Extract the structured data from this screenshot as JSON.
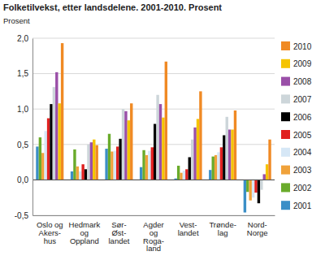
{
  "chart_data": {
    "type": "bar",
    "title": "Folketilvekst, etter landsdelene. 2001-2010. Prosent",
    "subtitle": "Prosent",
    "categories": [
      "Oslo og\nAkers-\nhus",
      "Hedmark\nog\nOppland",
      "Sør-\nØst-\nlandet",
      "Agder\nog\nRoga-\nland",
      "Vest-\nlandet",
      "Trønde-\nlag",
      "Nord-\nNorge"
    ],
    "series": [
      {
        "name": "2001",
        "color": "#3b8fc7",
        "values": [
          0.47,
          0.12,
          0.44,
          0.18,
          0.02,
          0.14,
          -0.46
        ]
      },
      {
        "name": "2002",
        "color": "#6aab2b",
        "values": [
          0.6,
          0.43,
          0.65,
          0.42,
          0.2,
          0.33,
          -0.17
        ]
      },
      {
        "name": "2003",
        "color": "#f0a23a",
        "values": [
          0.38,
          0.19,
          0.4,
          0.35,
          0.1,
          0.35,
          -0.29
        ]
      },
      {
        "name": "2004",
        "color": "#d6e7f6",
        "values": [
          0.69,
          0.12,
          0.41,
          0.41,
          0.13,
          0.39,
          -0.25
        ]
      },
      {
        "name": "2005",
        "color": "#e0201f",
        "values": [
          0.87,
          0.22,
          0.47,
          0.46,
          0.15,
          0.46,
          -0.18
        ]
      },
      {
        "name": "2006",
        "color": "#000000",
        "values": [
          1.07,
          0.15,
          0.58,
          0.79,
          0.32,
          0.63,
          -0.33
        ]
      },
      {
        "name": "2007",
        "color": "#cdd6da",
        "values": [
          1.31,
          0.5,
          1.0,
          1.2,
          0.57,
          0.89,
          -0.14
        ]
      },
      {
        "name": "2008",
        "color": "#9a4fa8",
        "values": [
          1.52,
          0.53,
          0.97,
          1.07,
          0.74,
          0.71,
          0.08
        ]
      },
      {
        "name": "2009",
        "color": "#f5c400",
        "values": [
          1.08,
          0.57,
          0.84,
          0.88,
          0.86,
          0.71,
          0.22
        ]
      },
      {
        "name": "2010",
        "color": "#f08a24",
        "values": [
          1.93,
          0.49,
          1.08,
          1.67,
          1.25,
          0.98,
          0.57
        ]
      }
    ],
    "ylim": [
      -0.5,
      2.0
    ],
    "yticks": [
      {
        "value": -0.5,
        "label": "-0,5"
      },
      {
        "value": 0,
        "label": "0,0"
      },
      {
        "value": 0.5,
        "label": "0,5"
      },
      {
        "value": 1.0,
        "label": "1,0"
      },
      {
        "value": 1.5,
        "label": "1,5"
      },
      {
        "value": 2.0,
        "label": "2,0"
      }
    ],
    "grid": true,
    "legend": "right"
  }
}
